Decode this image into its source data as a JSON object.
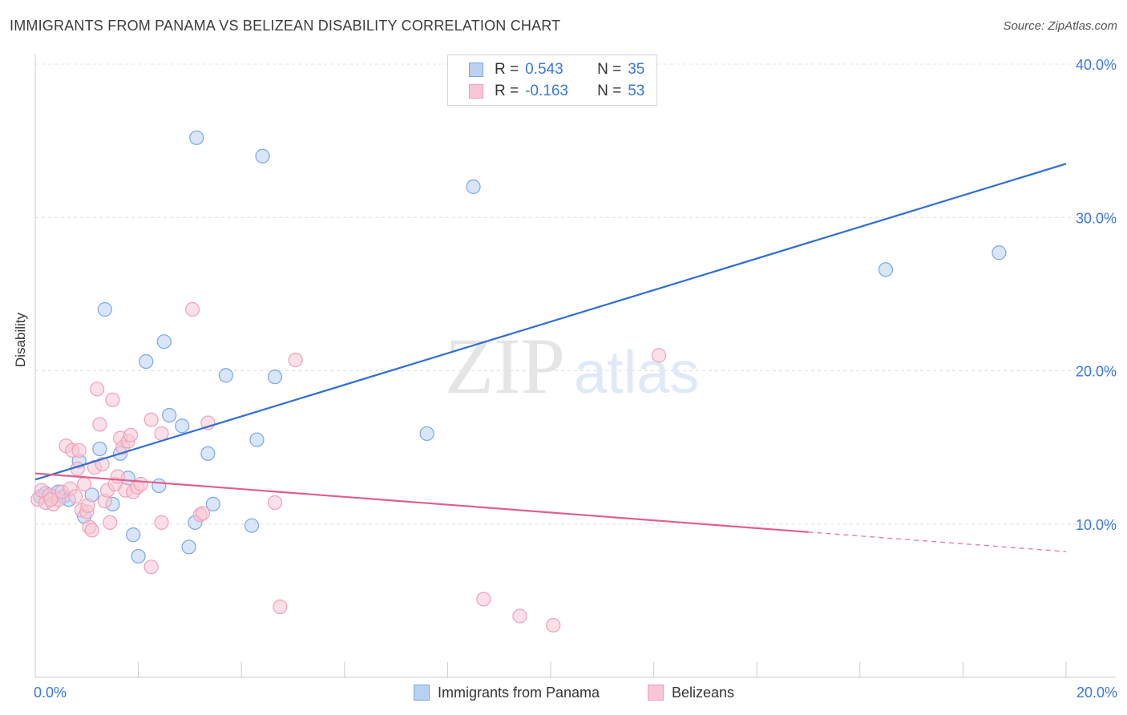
{
  "title": "IMMIGRANTS FROM PANAMA VS BELIZEAN DISABILITY CORRELATION CHART",
  "source": "Source: ZipAtlas.com",
  "watermark": {
    "zip": "ZIP",
    "atlas": "atlas"
  },
  "legend": {
    "r_label": "R =",
    "n_label": "N =",
    "rows": [
      {
        "r": "0.543",
        "n": "35"
      },
      {
        "r": "-0.163",
        "n": "53"
      }
    ]
  },
  "chart_data": {
    "type": "scatter",
    "title": "IMMIGRANTS FROM PANAMA VS BELIZEAN DISABILITY CORRELATION CHART",
    "xlabel": "",
    "ylabel": "Disability",
    "xlim": [
      0,
      20
    ],
    "ylim": [
      0,
      40
    ],
    "x_tick_labels": [
      {
        "value": 0,
        "label": "0.0%"
      },
      {
        "value": 20,
        "label": "20.0%"
      }
    ],
    "x_minor_ticks": [
      0,
      2,
      4,
      6,
      8,
      10,
      12,
      14,
      16,
      18,
      20
    ],
    "y_ticks": [
      {
        "value": 10,
        "label": "10.0%"
      },
      {
        "value": 20,
        "label": "20.0%"
      },
      {
        "value": 30,
        "label": "30.0%"
      },
      {
        "value": 40,
        "label": "40.0%"
      }
    ],
    "grid": true,
    "series": [
      {
        "name": "Immigrants from Panama",
        "color": "#7aa6e8",
        "fill": "#b9d1f3",
        "line_color": "#2f6fd2",
        "trend": {
          "x0": 0,
          "y0": 12.9,
          "x1": 20,
          "y1": 33.5,
          "solid_until": 20
        },
        "points": [
          [
            0.1,
            11.8
          ],
          [
            0.2,
            12.0
          ],
          [
            0.35,
            11.8
          ],
          [
            0.45,
            12.1
          ],
          [
            0.55,
            11.8
          ],
          [
            0.65,
            11.6
          ],
          [
            0.85,
            14.1
          ],
          [
            0.95,
            10.5
          ],
          [
            1.1,
            11.9
          ],
          [
            1.25,
            14.9
          ],
          [
            1.35,
            24.0
          ],
          [
            1.5,
            11.3
          ],
          [
            1.65,
            14.6
          ],
          [
            1.8,
            13.0
          ],
          [
            1.9,
            9.3
          ],
          [
            2.0,
            7.9
          ],
          [
            2.15,
            20.6
          ],
          [
            2.4,
            12.5
          ],
          [
            2.5,
            21.9
          ],
          [
            2.6,
            17.1
          ],
          [
            2.85,
            16.4
          ],
          [
            2.98,
            8.5
          ],
          [
            3.1,
            10.1
          ],
          [
            3.13,
            35.2
          ],
          [
            3.35,
            14.6
          ],
          [
            3.45,
            11.3
          ],
          [
            3.7,
            19.7
          ],
          [
            4.2,
            9.9
          ],
          [
            4.3,
            15.5
          ],
          [
            4.41,
            34.0
          ],
          [
            4.65,
            19.6
          ],
          [
            7.6,
            15.9
          ],
          [
            8.5,
            32.0
          ],
          [
            16.5,
            26.6
          ],
          [
            18.7,
            27.7
          ]
        ]
      },
      {
        "name": "Belizeans",
        "color": "#f0a0b8",
        "fill": "#f8c6d4",
        "line_color": "#e0608a",
        "trend": {
          "x0": 0,
          "y0": 13.3,
          "x1": 20,
          "y1": 8.2,
          "solid_until": 15
        },
        "points": [
          [
            0.05,
            11.6
          ],
          [
            0.12,
            12.2
          ],
          [
            0.2,
            11.4
          ],
          [
            0.28,
            11.9
          ],
          [
            0.35,
            11.3
          ],
          [
            0.45,
            11.6
          ],
          [
            0.52,
            12.1
          ],
          [
            0.6,
            15.1
          ],
          [
            0.68,
            12.3
          ],
          [
            0.72,
            14.8
          ],
          [
            0.78,
            11.8
          ],
          [
            0.82,
            13.6
          ],
          [
            0.85,
            14.8
          ],
          [
            0.9,
            10.9
          ],
          [
            0.95,
            12.6
          ],
          [
            1.0,
            10.8
          ],
          [
            1.02,
            11.2
          ],
          [
            1.05,
            9.8
          ],
          [
            1.1,
            9.6
          ],
          [
            1.15,
            13.7
          ],
          [
            1.2,
            18.8
          ],
          [
            1.25,
            16.5
          ],
          [
            1.3,
            13.9
          ],
          [
            1.35,
            11.5
          ],
          [
            1.4,
            12.2
          ],
          [
            1.45,
            10.1
          ],
          [
            1.5,
            18.1
          ],
          [
            1.55,
            12.6
          ],
          [
            1.6,
            13.1
          ],
          [
            1.65,
            15.6
          ],
          [
            1.7,
            15.0
          ],
          [
            1.75,
            12.2
          ],
          [
            1.8,
            15.4
          ],
          [
            1.85,
            15.8
          ],
          [
            1.9,
            12.1
          ],
          [
            1.98,
            12.4
          ],
          [
            2.05,
            12.6
          ],
          [
            2.25,
            16.8
          ],
          [
            2.25,
            7.2
          ],
          [
            2.45,
            15.9
          ],
          [
            2.45,
            10.1
          ],
          [
            3.05,
            24.0
          ],
          [
            3.2,
            10.6
          ],
          [
            3.25,
            10.7
          ],
          [
            3.35,
            16.6
          ],
          [
            4.65,
            11.4
          ],
          [
            4.75,
            4.6
          ],
          [
            5.05,
            20.7
          ],
          [
            8.7,
            5.1
          ],
          [
            9.4,
            4.0
          ],
          [
            10.05,
            3.4
          ],
          [
            12.1,
            21.0
          ],
          [
            0.3,
            11.6
          ]
        ]
      }
    ]
  }
}
